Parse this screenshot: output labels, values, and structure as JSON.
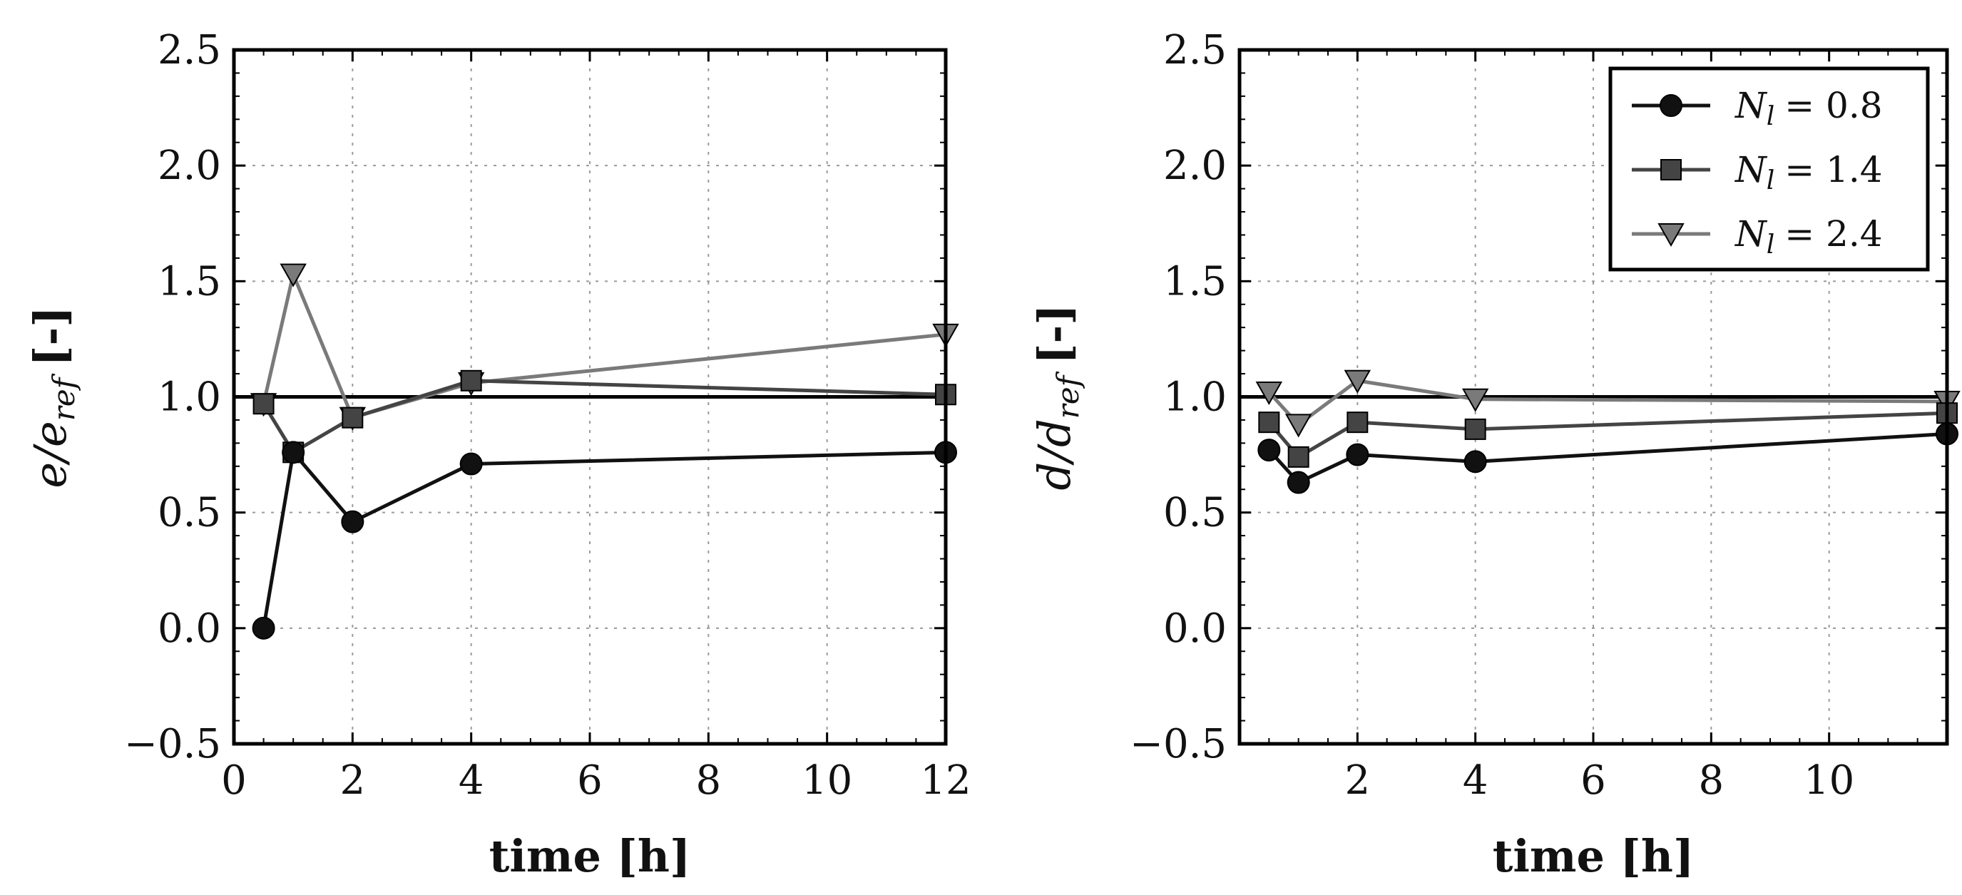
{
  "chart_data": [
    {
      "type": "line",
      "xlabel": "time [h]",
      "ylabel": "e/e_ref [-]",
      "ylabel_main": "e/e",
      "ylabel_sub": "ref",
      "ylabel_unit": "[-]",
      "xlim": [
        0,
        12
      ],
      "ylim": [
        -0.5,
        2.5
      ],
      "xticks": [
        0,
        2,
        4,
        6,
        8,
        10,
        12
      ],
      "xtick_labels": [
        "0",
        "2",
        "4",
        "6",
        "8",
        "10",
        "12"
      ],
      "yticks": [
        -0.5,
        0.0,
        0.5,
        1.0,
        1.5,
        2.0,
        2.5
      ],
      "ytick_labels": [
        "−0.5",
        "0.0",
        "0.5",
        "1.0",
        "1.5",
        "2.0",
        "2.5"
      ],
      "grid": true,
      "reference_line": 1.0,
      "x": [
        0.5,
        1,
        2,
        4,
        12
      ],
      "series": [
        {
          "name": "N_l = 0.8",
          "marker": "circle",
          "color": "#111111",
          "values": [
            0.0,
            0.76,
            0.46,
            0.71,
            0.76
          ]
        },
        {
          "name": "N_l = 1.4",
          "marker": "square",
          "color": "#444444",
          "values": [
            0.97,
            0.76,
            0.91,
            1.07,
            1.01
          ]
        },
        {
          "name": "N_l = 2.4",
          "marker": "triangle-down",
          "color": "#7a7a7a",
          "values": [
            0.97,
            1.53,
            0.91,
            1.06,
            1.27
          ]
        }
      ]
    },
    {
      "type": "line",
      "xlabel": "time [h]",
      "ylabel": "d/d_ref [-]",
      "ylabel_main": "d/d",
      "ylabel_sub": "ref",
      "ylabel_unit": "[-]",
      "xlim": [
        0,
        12
      ],
      "ylim": [
        -0.5,
        2.5
      ],
      "xticks": [
        2,
        4,
        6,
        8,
        10
      ],
      "xtick_labels": [
        "2",
        "4",
        "6",
        "8",
        "10"
      ],
      "yticks": [
        -0.5,
        0.0,
        0.5,
        1.0,
        1.5,
        2.0,
        2.5
      ],
      "ytick_labels": [
        "−0.5",
        "0.0",
        "0.5",
        "1.0",
        "1.5",
        "2.0",
        "2.5"
      ],
      "grid": true,
      "reference_line": 1.0,
      "legend": "top-right",
      "x": [
        0.5,
        1,
        2,
        4,
        12
      ],
      "series": [
        {
          "name": "N_l = 0.8",
          "label": "N",
          "label_sub": "l",
          "label_value": "= 0.8",
          "marker": "circle",
          "color": "#111111",
          "values": [
            0.77,
            0.63,
            0.75,
            0.72,
            0.84
          ]
        },
        {
          "name": "N_l = 1.4",
          "label": "N",
          "label_sub": "l",
          "label_value": "= 1.4",
          "marker": "square",
          "color": "#444444",
          "values": [
            0.89,
            0.74,
            0.89,
            0.86,
            0.93
          ]
        },
        {
          "name": "N_l = 2.4",
          "label": "N",
          "label_sub": "l",
          "label_value": "= 2.4",
          "marker": "triangle-down",
          "color": "#7a7a7a",
          "values": [
            1.02,
            0.88,
            1.07,
            0.99,
            0.98
          ]
        }
      ]
    }
  ]
}
